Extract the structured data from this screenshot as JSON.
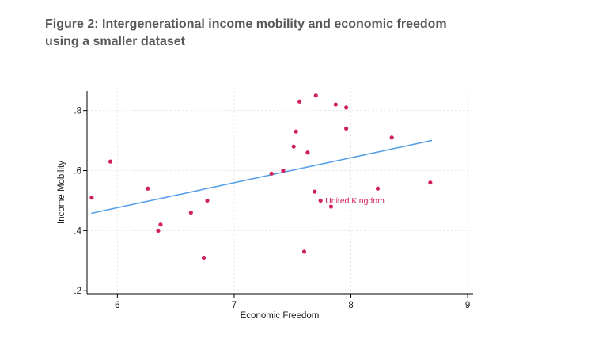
{
  "title": {
    "line1": "Figure 2: Intergenerational income mobility and economic freedom",
    "line2": "using a smaller dataset"
  },
  "chart_data": {
    "type": "scatter",
    "title": "Figure 2: Intergenerational income mobility and economic freedom using a smaller dataset",
    "xlabel": "Economic Freedom",
    "ylabel": "Income Mobility",
    "xlim": [
      5.74,
      9.04
    ],
    "ylim": [
      0.19,
      0.865
    ],
    "x_ticks": [
      6,
      7,
      8,
      9
    ],
    "x_tick_labels": [
      "6",
      "7",
      "8",
      "9"
    ],
    "y_ticks": [
      0.2,
      0.4,
      0.6,
      0.8
    ],
    "y_tick_labels": [
      ".2",
      ".4",
      ".6",
      ".8"
    ],
    "grid": true,
    "legend": false,
    "points": [
      {
        "x": 5.78,
        "y": 0.51
      },
      {
        "x": 5.94,
        "y": 0.63
      },
      {
        "x": 6.26,
        "y": 0.54
      },
      {
        "x": 6.35,
        "y": 0.4
      },
      {
        "x": 6.37,
        "y": 0.42
      },
      {
        "x": 6.63,
        "y": 0.46
      },
      {
        "x": 6.74,
        "y": 0.31
      },
      {
        "x": 6.77,
        "y": 0.5
      },
      {
        "x": 7.32,
        "y": 0.59
      },
      {
        "x": 7.42,
        "y": 0.6
      },
      {
        "x": 7.51,
        "y": 0.68
      },
      {
        "x": 7.53,
        "y": 0.73
      },
      {
        "x": 7.56,
        "y": 0.83
      },
      {
        "x": 7.6,
        "y": 0.33
      },
      {
        "x": 7.63,
        "y": 0.66
      },
      {
        "x": 7.69,
        "y": 0.53
      },
      {
        "x": 7.7,
        "y": 0.85
      },
      {
        "x": 7.74,
        "y": 0.5,
        "label": "United Kingdom"
      },
      {
        "x": 7.83,
        "y": 0.48
      },
      {
        "x": 7.87,
        "y": 0.82
      },
      {
        "x": 7.96,
        "y": 0.81
      },
      {
        "x": 7.96,
        "y": 0.74
      },
      {
        "x": 8.23,
        "y": 0.54
      },
      {
        "x": 8.35,
        "y": 0.71
      },
      {
        "x": 8.68,
        "y": 0.56
      }
    ],
    "trend_line": {
      "x1": 5.78,
      "y1": 0.458,
      "x2": 8.69,
      "y2": 0.7
    },
    "colors": {
      "marker": "#d02060",
      "point_label": "#d02060",
      "trend_line": "#56a0e6",
      "grid": "#e8e8e8",
      "axis": "#000000",
      "tick_text": "#1a1a1a",
      "title_text": "#58585a"
    }
  }
}
